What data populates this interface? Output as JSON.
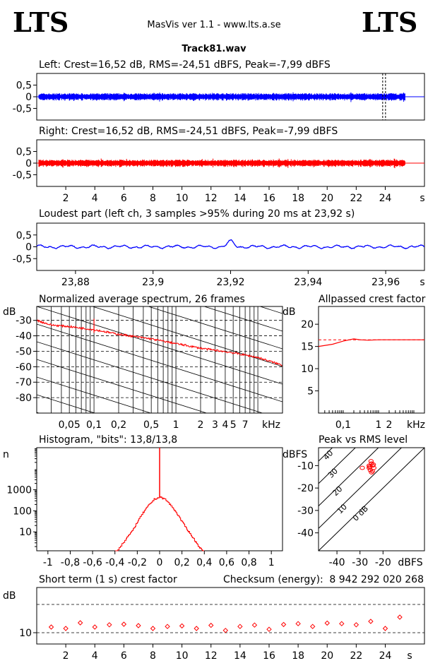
{
  "header": {
    "logo_left": "LTS",
    "logo_right": "LTS",
    "app_title": "MasVis ver 1.1 - www.lts.a.se",
    "file_name": "Track81.wav"
  },
  "chart_data": [
    {
      "id": "left",
      "type": "line",
      "title": "Left: Crest=16,52 dB, RMS=-24,51 dBFS, Peak=-7,99 dBFS",
      "yticks": [
        "0,5",
        "0",
        "-0,5"
      ],
      "yticks_v": [
        0.5,
        0,
        -0.5
      ],
      "ylim": [
        -1,
        1
      ],
      "xlim": [
        0,
        26.7
      ],
      "signal_end_s": 25.4,
      "marker_s": 23.92,
      "color": "#0000ff"
    },
    {
      "id": "right",
      "type": "line",
      "title": "Right: Crest=16,52 dB, RMS=-24,51 dBFS, Peak=-7,99 dBFS",
      "yticks": [
        "0,5",
        "0",
        "-0,5"
      ],
      "yticks_v": [
        0.5,
        0,
        -0.5
      ],
      "ylim": [
        -1,
        1
      ],
      "xlim": [
        0,
        26.7
      ],
      "signal_end_s": 25.4,
      "xticks": [
        "2",
        "4",
        "6",
        "8",
        "10",
        "12",
        "14",
        "16",
        "18",
        "20",
        "22",
        "24"
      ],
      "xticks_v": [
        2,
        4,
        6,
        8,
        10,
        12,
        14,
        16,
        18,
        20,
        22,
        24
      ],
      "xunit": "s",
      "color": "#ff0000"
    },
    {
      "id": "loudest",
      "type": "line",
      "title": "Loudest part (left  ch, 3 samples >95% during 20 ms at 23,92 s)",
      "yticks": [
        "0,5",
        "0",
        "-0,5"
      ],
      "yticks_v": [
        0.5,
        0,
        -0.5
      ],
      "ylim": [
        -1,
        1
      ],
      "xlim": [
        23.87,
        23.97
      ],
      "xticks": [
        "23,88",
        "23,9",
        "23,92",
        "23,94",
        "23,96"
      ],
      "xticks_v": [
        23.88,
        23.9,
        23.92,
        23.94,
        23.96
      ],
      "xunit": "s",
      "peak_s": 23.92,
      "color": "#0000ff"
    },
    {
      "id": "spectrum",
      "type": "line",
      "title": "Normalized average spectrum, 26 frames",
      "ylabel": "dB",
      "yticks": [
        "-30",
        "-40",
        "-50",
        "-60",
        "-70",
        "-80"
      ],
      "yticks_v": [
        -30,
        -40,
        -50,
        -60,
        -70,
        -80
      ],
      "ylim": [
        -90,
        -21
      ],
      "xlim_khz": [
        0.02,
        20
      ],
      "xticks": [
        "0,05",
        "0,1",
        "0,2",
        "0,5",
        "1",
        "2",
        "3",
        "4",
        "5",
        "7"
      ],
      "xticks_v": [
        0.05,
        0.1,
        0.2,
        0.5,
        1,
        2,
        3,
        4,
        5,
        7
      ],
      "xunit": "kHz",
      "x_khz": [
        0.02,
        0.03,
        0.05,
        0.07,
        0.1,
        0.2,
        0.5,
        1,
        2,
        5,
        10,
        20
      ],
      "y_db": [
        -30,
        -33,
        -34,
        -35,
        -36,
        -39,
        -42,
        -45,
        -48,
        -51,
        -54,
        -59
      ],
      "spike_khz": 0.1,
      "spike_db": -32,
      "color": "#ff0000"
    },
    {
      "id": "allpassed",
      "type": "line",
      "title": "Allpassed crest factor",
      "ylabel": "dB",
      "yticks": [
        "20",
        "15",
        "10",
        "5"
      ],
      "yticks_v": [
        20,
        15,
        10,
        5
      ],
      "ylim": [
        0,
        24
      ],
      "xlim_khz": [
        0.02,
        20
      ],
      "xticks": [
        "0,1",
        "1",
        "2",
        "kHz"
      ],
      "xticks_v": [
        0.1,
        1,
        2
      ],
      "x_khz": [
        0.02,
        0.05,
        0.1,
        0.2,
        0.3,
        0.5,
        1,
        2,
        5,
        10,
        20
      ],
      "y_db": [
        15,
        15.5,
        16.2,
        16.7,
        16.5,
        16.4,
        16.5,
        16.5,
        16.5,
        16.5,
        16.5
      ],
      "ref_db": 16.5,
      "color": "#ff0000"
    },
    {
      "id": "histogram",
      "type": "line",
      "title": "Histogram, \"bits\": 13,8/13,8",
      "ylabel": "n",
      "yticks": [
        "1000",
        "100",
        "10"
      ],
      "yticks_v": [
        1000,
        100,
        10
      ],
      "ylim_log10": [
        0.1,
        5
      ],
      "xlim": [
        -1.1,
        1.1
      ],
      "xticks": [
        "-1",
        "-0,8",
        "-0,6",
        "-0,4",
        "-0,2",
        "0",
        "0,2",
        "0,4",
        "0,6",
        "0,8",
        "1"
      ],
      "xticks_v": [
        -1,
        -0.8,
        -0.6,
        -0.4,
        -0.2,
        0,
        0.2,
        0.4,
        0.6,
        0.8,
        1
      ],
      "x": [
        -0.4,
        -0.3,
        -0.25,
        -0.2,
        -0.15,
        -0.1,
        -0.05,
        0,
        0.05,
        0.1,
        0.15,
        0.2,
        0.25,
        0.3,
        0.35,
        0.4
      ],
      "n": [
        1,
        5,
        10,
        30,
        80,
        180,
        350,
        450,
        350,
        180,
        80,
        30,
        12,
        5,
        2,
        1
      ],
      "center_spike_n": 100000,
      "color": "#ff0000"
    },
    {
      "id": "peakrms",
      "type": "scatter",
      "title": "Peak vs RMS level",
      "ylabel": "dBFS",
      "yticks": [
        "-10",
        "-20",
        "-30",
        "-40"
      ],
      "yticks_v": [
        -10,
        -20,
        -30,
        -40
      ],
      "ylim": [
        -48,
        -2
      ],
      "xlim": [
        -48,
        -2
      ],
      "xticks": [
        "-40",
        "-30",
        "-20"
      ],
      "xticks_v": [
        -40,
        -30,
        -20
      ],
      "xunit": "dBFS",
      "crest_lines": [
        "40",
        "30",
        "20",
        "10",
        "0 dB"
      ],
      "crest_lines_v": [
        40,
        30,
        20,
        10,
        0
      ],
      "points_rms": [
        -29,
        -26,
        -25,
        -24.5,
        -25.5,
        -24,
        -26,
        -25,
        -24.2,
        -25.8,
        -24.6,
        -25.2
      ],
      "points_peak": [
        -11,
        -10,
        -9,
        -10,
        -12,
        -11,
        -11,
        -13,
        -9.5,
        -10.5,
        -12.5,
        -8
      ],
      "color": "#ff0000"
    },
    {
      "id": "shortterm",
      "type": "scatter",
      "title": "Short term (1 s) crest factor",
      "ylabel": "dB",
      "yticks": [
        "10"
      ],
      "yticks_v": [
        10
      ],
      "ylim": [
        6,
        26
      ],
      "xlim": [
        0,
        26.7
      ],
      "xticks": [
        "2",
        "4",
        "6",
        "8",
        "10",
        "12",
        "14",
        "16",
        "18",
        "20",
        "22",
        "24"
      ],
      "xticks_v": [
        2,
        4,
        6,
        8,
        10,
        12,
        14,
        16,
        18,
        20,
        22,
        24
      ],
      "xunit": "s",
      "x": [
        1,
        2,
        3,
        4,
        5,
        6,
        7,
        8,
        9,
        10,
        11,
        12,
        13,
        14,
        15,
        16,
        17,
        18,
        19,
        20,
        21,
        22,
        23,
        24,
        25
      ],
      "y": [
        12,
        11.5,
        13.5,
        12,
        12.8,
        13,
        12.5,
        11.5,
        12.2,
        12.4,
        11.5,
        12.6,
        10.8,
        12.2,
        12.7,
        11.2,
        12.9,
        13.2,
        12.2,
        13.4,
        13.2,
        12.8,
        14,
        11.5,
        15.5
      ],
      "reflines": [
        10,
        20
      ],
      "checksum_label": "Checksum (energy):",
      "checksum_value": "8 942 292 020 268",
      "color": "#ff0000"
    }
  ]
}
